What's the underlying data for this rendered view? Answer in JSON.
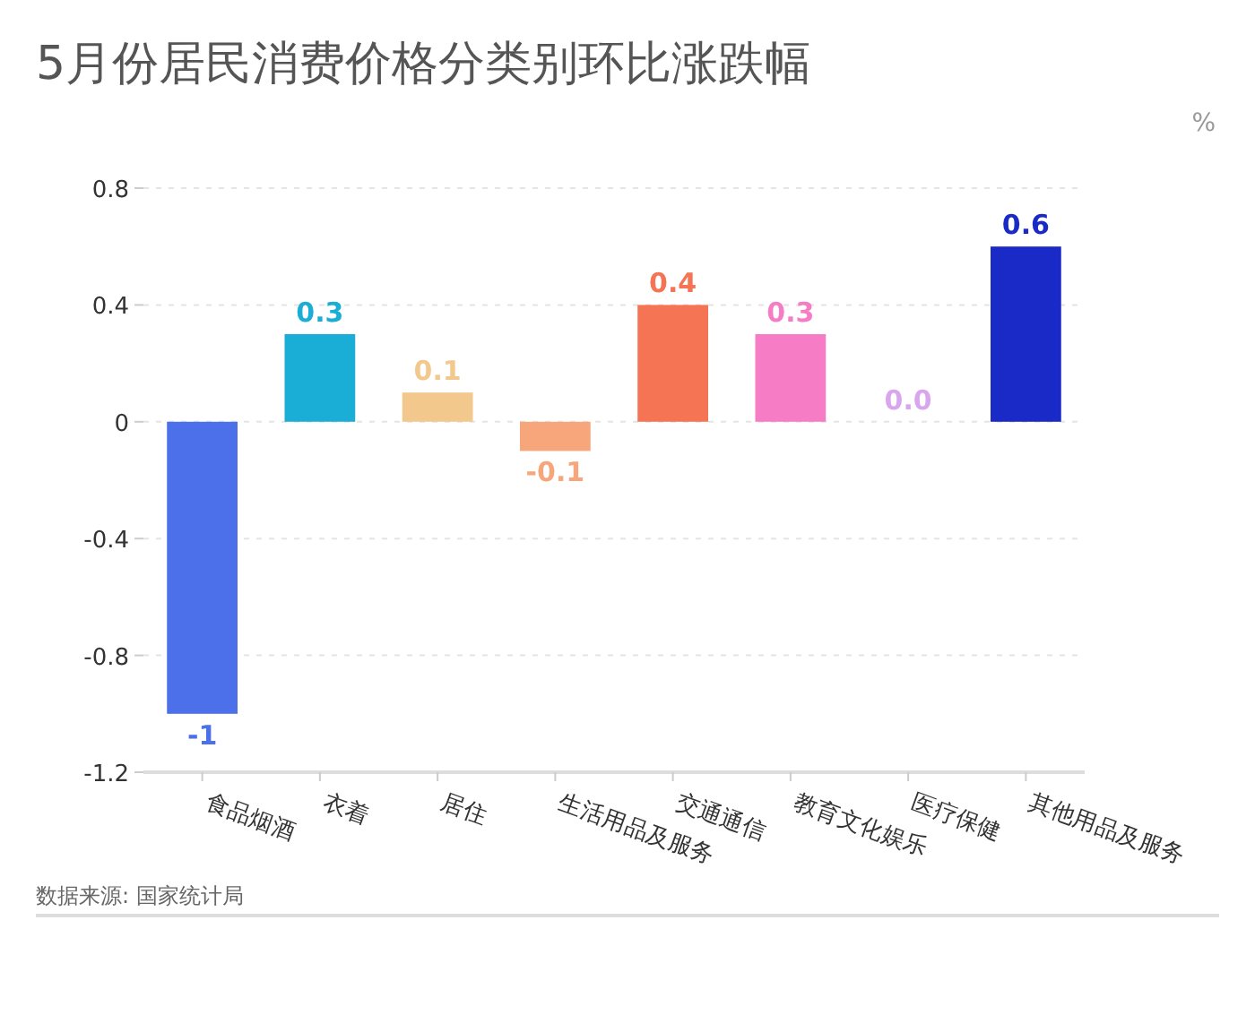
{
  "chart_data": {
    "type": "bar",
    "title": "5月份居民消费价格分类别环比涨跌幅",
    "ylabel": "%",
    "categories": [
      "食品烟酒",
      "衣着",
      "居住",
      "生活用品及服务",
      "交通通信",
      "教育文化娱乐",
      "医疗保健",
      "其他用品及服务"
    ],
    "values": [
      -1,
      0.3,
      0.1,
      -0.1,
      0.4,
      0.3,
      0,
      0.6
    ],
    "colors": [
      "#4b70ea",
      "#1aaed6",
      "#f3c88c",
      "#f7a67c",
      "#f47454",
      "#f77cc6",
      "#d9a6ee",
      "#1a2ac6"
    ],
    "value_labels": [
      "-1",
      "0.3",
      "0.1",
      "-0.1",
      "0.4",
      "0.3",
      "0.0",
      "0.6"
    ],
    "ylim": [
      -1.2,
      0.8
    ],
    "yticks": [
      -1.2,
      -0.8,
      -0.4,
      0,
      0.4,
      0.8
    ],
    "grid": "y",
    "annotations": [
      "数据来源: 国家统计局"
    ]
  }
}
